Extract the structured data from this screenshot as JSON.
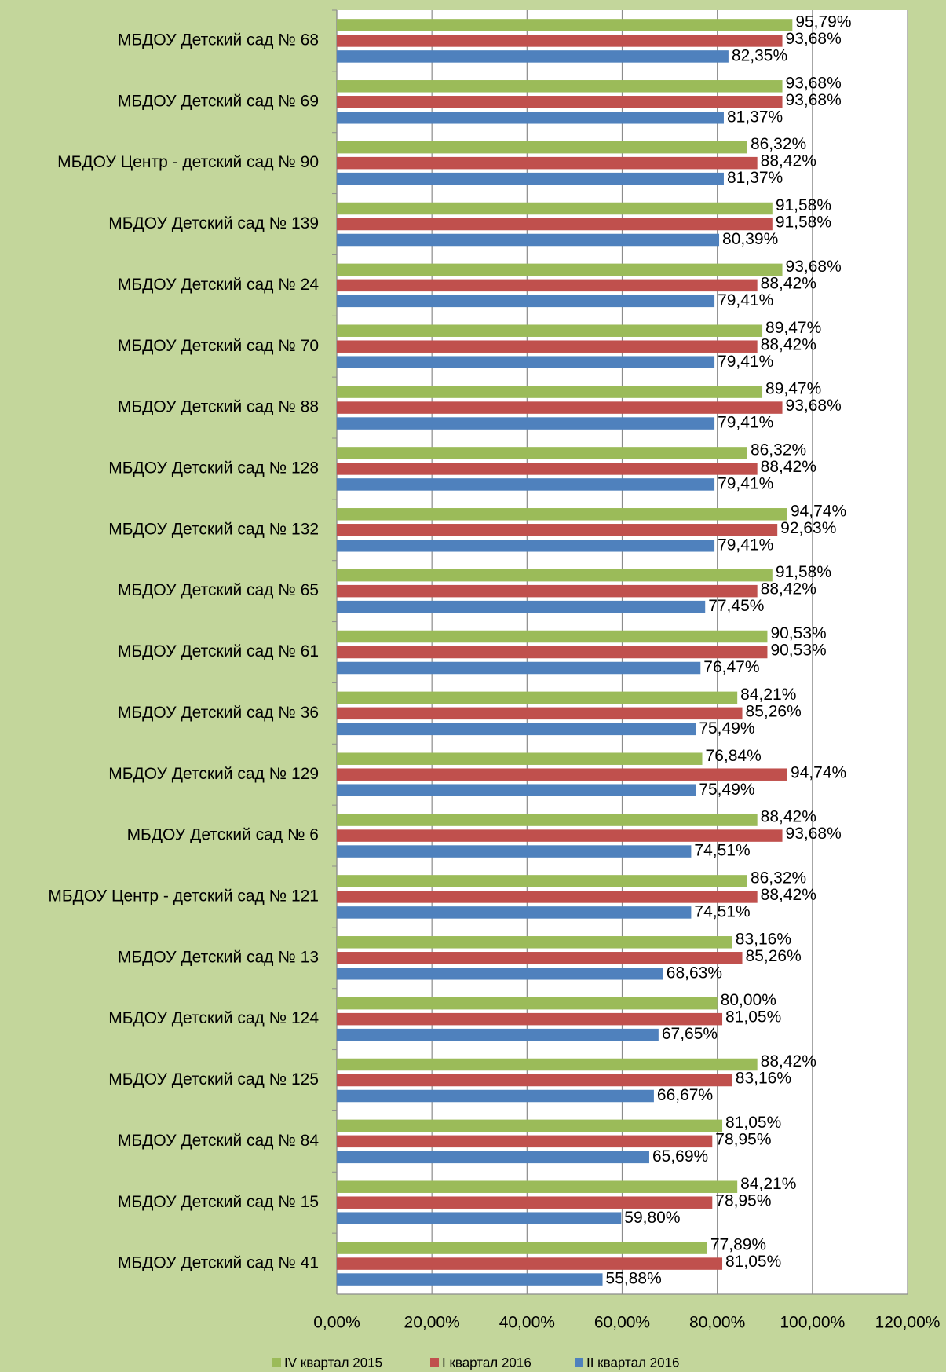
{
  "chart_data": {
    "type": "hbar",
    "categories": [
      "МБДОУ Детский сад № 68",
      "МБДОУ Детский сад № 69",
      "МБДОУ Центр - детский сад № 90",
      "МБДОУ Детский сад № 139",
      "МБДОУ Детский сад № 24",
      "МБДОУ Детский сад № 70",
      "МБДОУ Детский сад № 88",
      "МБДОУ Детский сад № 128",
      "МБДОУ Детский сад № 132",
      "МБДОУ Детский сад № 65",
      "МБДОУ Детский сад № 61",
      "МБДОУ Детский сад № 36",
      "МБДОУ Детский сад № 129",
      "МБДОУ Детский сад № 6",
      "МБДОУ Центр - детский сад № 121",
      "МБДОУ Детский сад № 13",
      "МБДОУ Детский сад № 124",
      "МБДОУ Детский сад № 125",
      "МБДОУ Детский сад № 84",
      "МБДОУ Детский сад № 15",
      "МБДОУ Детский сад № 41"
    ],
    "series": [
      {
        "name": "IV квартал 2015",
        "color": "#9bbb59",
        "values": [
          95.79,
          93.68,
          86.32,
          91.58,
          93.68,
          89.47,
          89.47,
          86.32,
          94.74,
          91.58,
          90.53,
          84.21,
          76.84,
          88.42,
          86.32,
          83.16,
          80.0,
          88.42,
          81.05,
          84.21,
          77.89
        ],
        "value_labels": [
          "95,79%",
          "93,68%",
          "86,32%",
          "91,58%",
          "93,68%",
          "89,47%",
          "89,47%",
          "86,32%",
          "94,74%",
          "91,58%",
          "90,53%",
          "84,21%",
          "76,84%",
          "88,42%",
          "86,32%",
          "83,16%",
          "80,00%",
          "88,42%",
          "81,05%",
          "84,21%",
          "77,89%"
        ]
      },
      {
        "name": "I квартал 2016",
        "color": "#c0504d",
        "values": [
          93.68,
          93.68,
          88.42,
          91.58,
          88.42,
          88.42,
          93.68,
          88.42,
          92.63,
          88.42,
          90.53,
          85.26,
          94.74,
          93.68,
          88.42,
          85.26,
          81.05,
          83.16,
          78.95,
          78.95,
          81.05
        ],
        "value_labels": [
          "93,68%",
          "93,68%",
          "88,42%",
          "91,58%",
          "88,42%",
          "88,42%",
          "93,68%",
          "88,42%",
          "92,63%",
          "88,42%",
          "90,53%",
          "85,26%",
          "94,74%",
          "93,68%",
          "88,42%",
          "85,26%",
          "81,05%",
          "83,16%",
          "78,95%",
          "78,95%",
          "81,05%"
        ]
      },
      {
        "name": "II квартал 2016",
        "color": "#4f81bd",
        "values": [
          82.35,
          81.37,
          81.37,
          80.39,
          79.41,
          79.41,
          79.41,
          79.41,
          79.41,
          77.45,
          76.47,
          75.49,
          75.49,
          74.51,
          74.51,
          68.63,
          67.65,
          66.67,
          65.69,
          59.8,
          55.88
        ],
        "value_labels": [
          "82,35%",
          "81,37%",
          "81,37%",
          "80,39%",
          "79,41%",
          "79,41%",
          "79,41%",
          "79,41%",
          "79,41%",
          "77,45%",
          "76,47%",
          "75,49%",
          "75,49%",
          "74,51%",
          "74,51%",
          "68,63%",
          "67,65%",
          "66,67%",
          "65,69%",
          "59,80%",
          "55,88%"
        ]
      }
    ],
    "xlim": [
      0,
      120
    ],
    "xticks": [
      {
        "value": 0,
        "label": "0,00%"
      },
      {
        "value": 20,
        "label": "20,00%"
      },
      {
        "value": 40,
        "label": "40,00%"
      },
      {
        "value": 60,
        "label": "60,00%"
      },
      {
        "value": 80,
        "label": "80,00%"
      },
      {
        "value": 100,
        "label": "100,00%"
      },
      {
        "value": 120,
        "label": "120,00%"
      }
    ],
    "grid": true,
    "legend": "bottom"
  }
}
